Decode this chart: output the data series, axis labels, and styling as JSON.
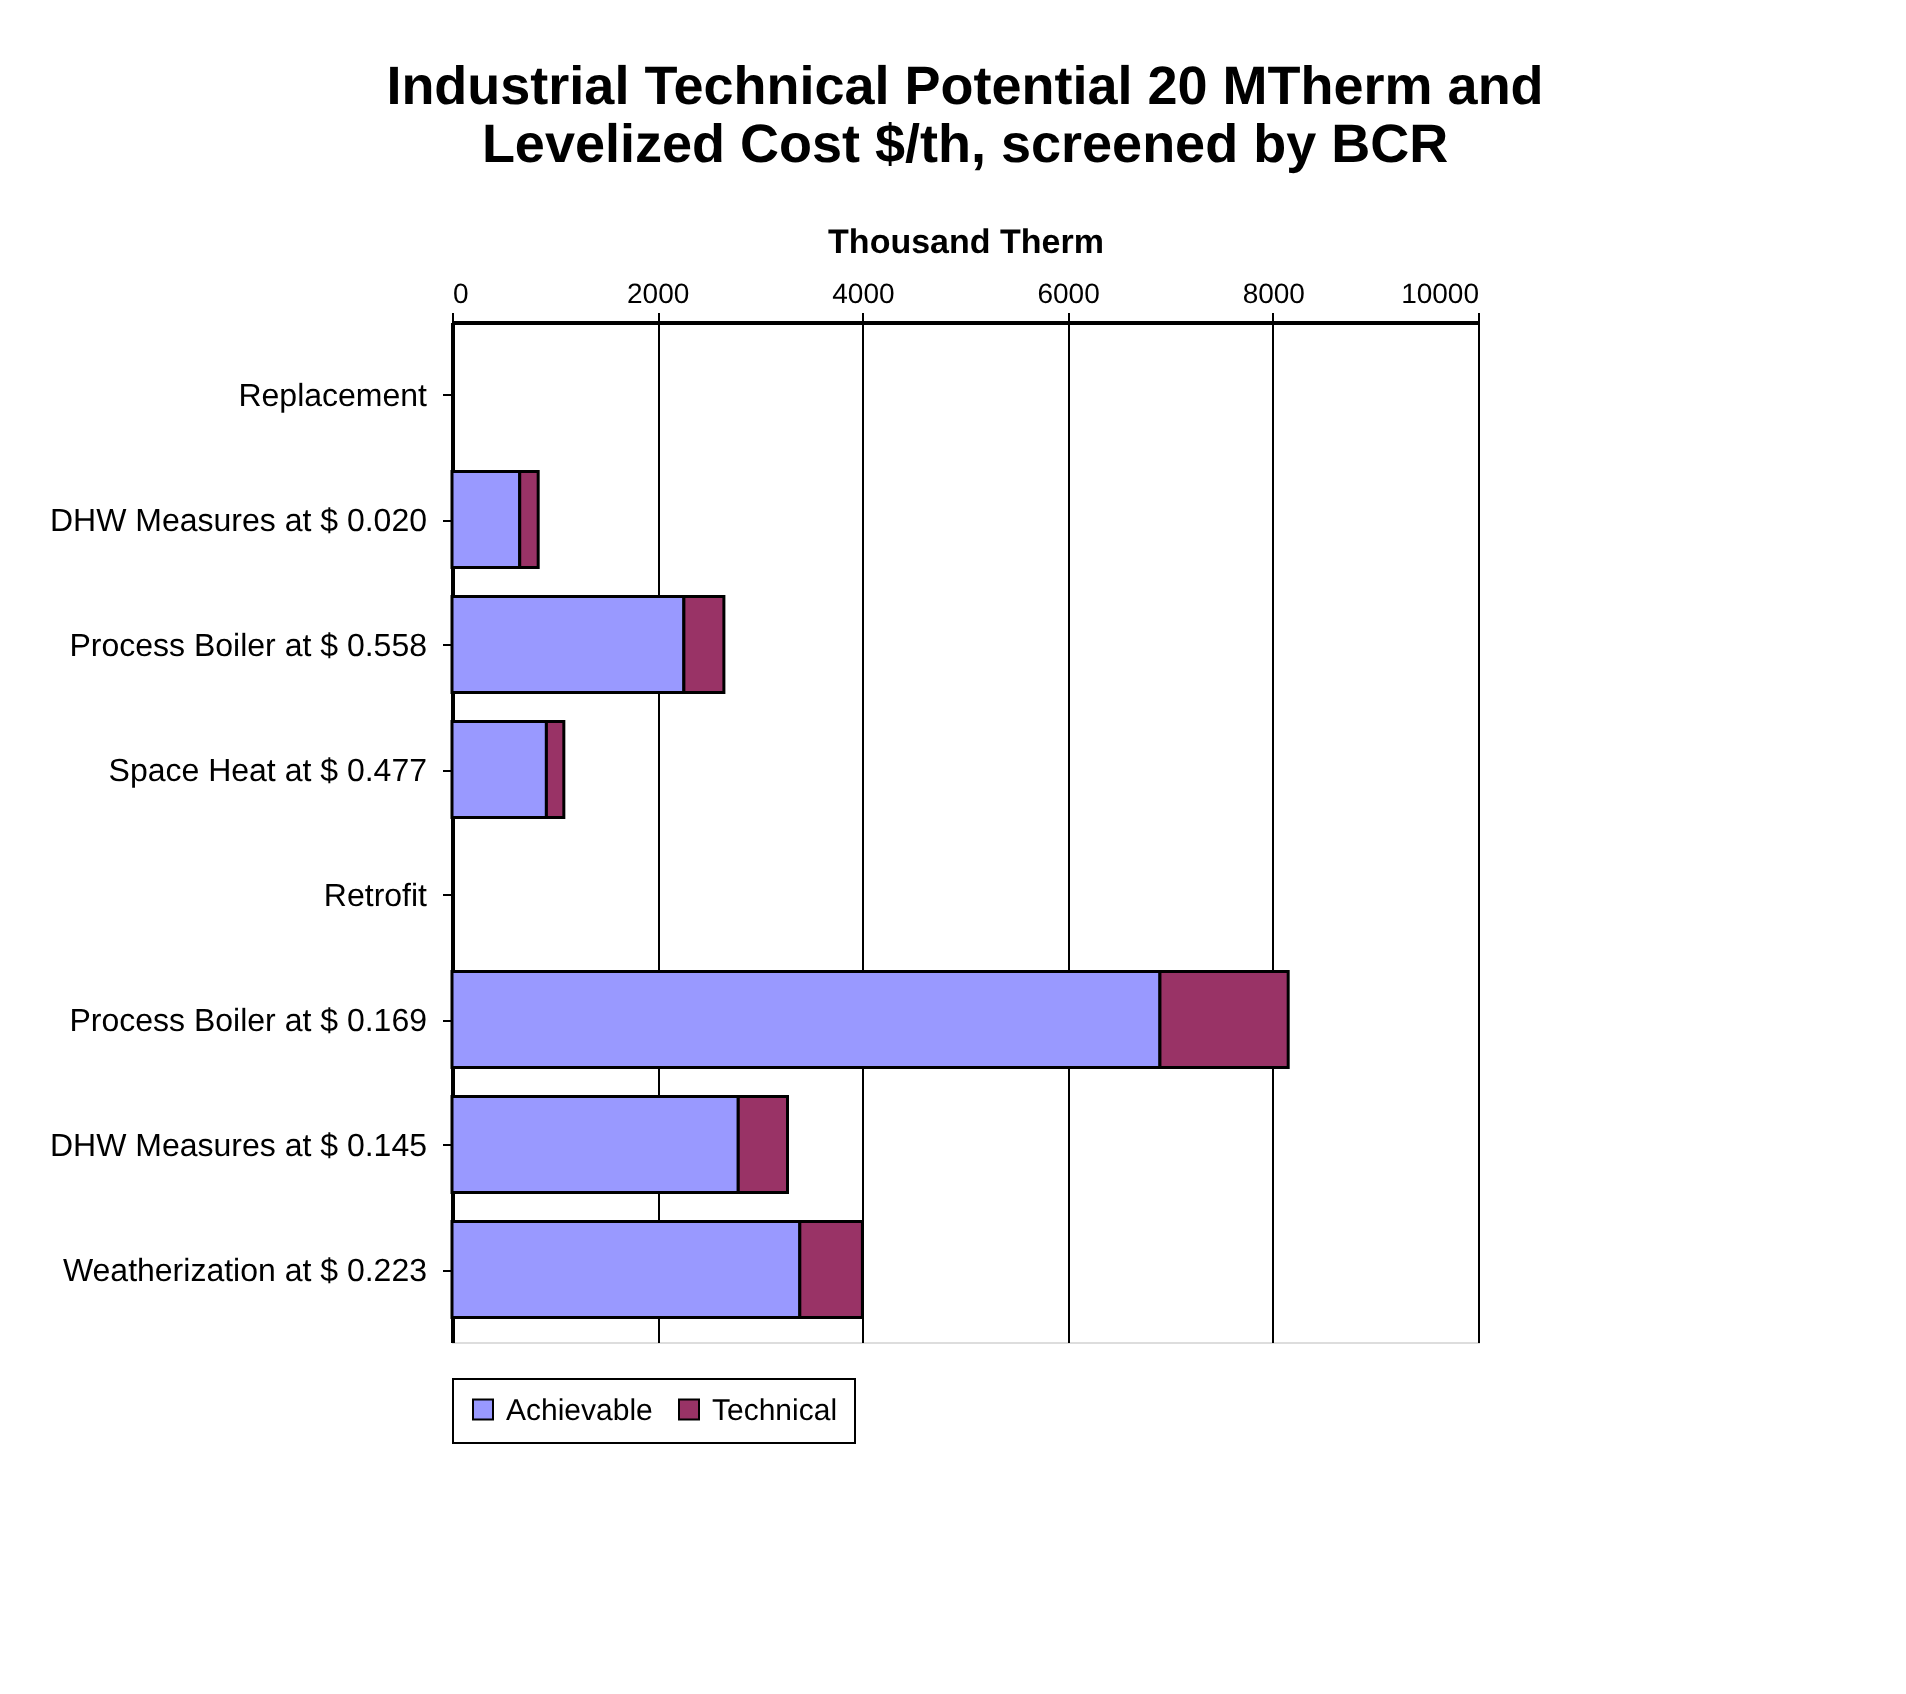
{
  "chart_data": {
    "type": "bar",
    "orientation": "horizontal",
    "stacked": true,
    "title": [
      "Industrial Technical Potential 20 MTherm and",
      "Levelized Cost $/th, screened by BCR"
    ],
    "xlabel": "Thousand Therm",
    "categories": [
      "Replacement",
      "DHW Measures  at $ 0.020",
      "Process Boiler at $ 0.558",
      "Space Heat at $ 0.477",
      "Retrofit",
      "Process Boiler at $ 0.169",
      "DHW Measures  at $ 0.145",
      "Weatherization  at $ 0.223"
    ],
    "series": [
      {
        "name": "Achievable",
        "color": "#9999ff",
        "values": [
          null,
          660,
          2260,
          920,
          null,
          6900,
          2790,
          3390
        ]
      },
      {
        "name": "Technical",
        "color": "#993366",
        "values": [
          null,
          180,
          390,
          170,
          null,
          1250,
          480,
          610
        ]
      }
    ],
    "xlim": [
      0,
      10000
    ],
    "xticks": [
      0,
      2000,
      4000,
      6000,
      8000,
      10000
    ],
    "grid": "x",
    "legend": "bottom"
  }
}
